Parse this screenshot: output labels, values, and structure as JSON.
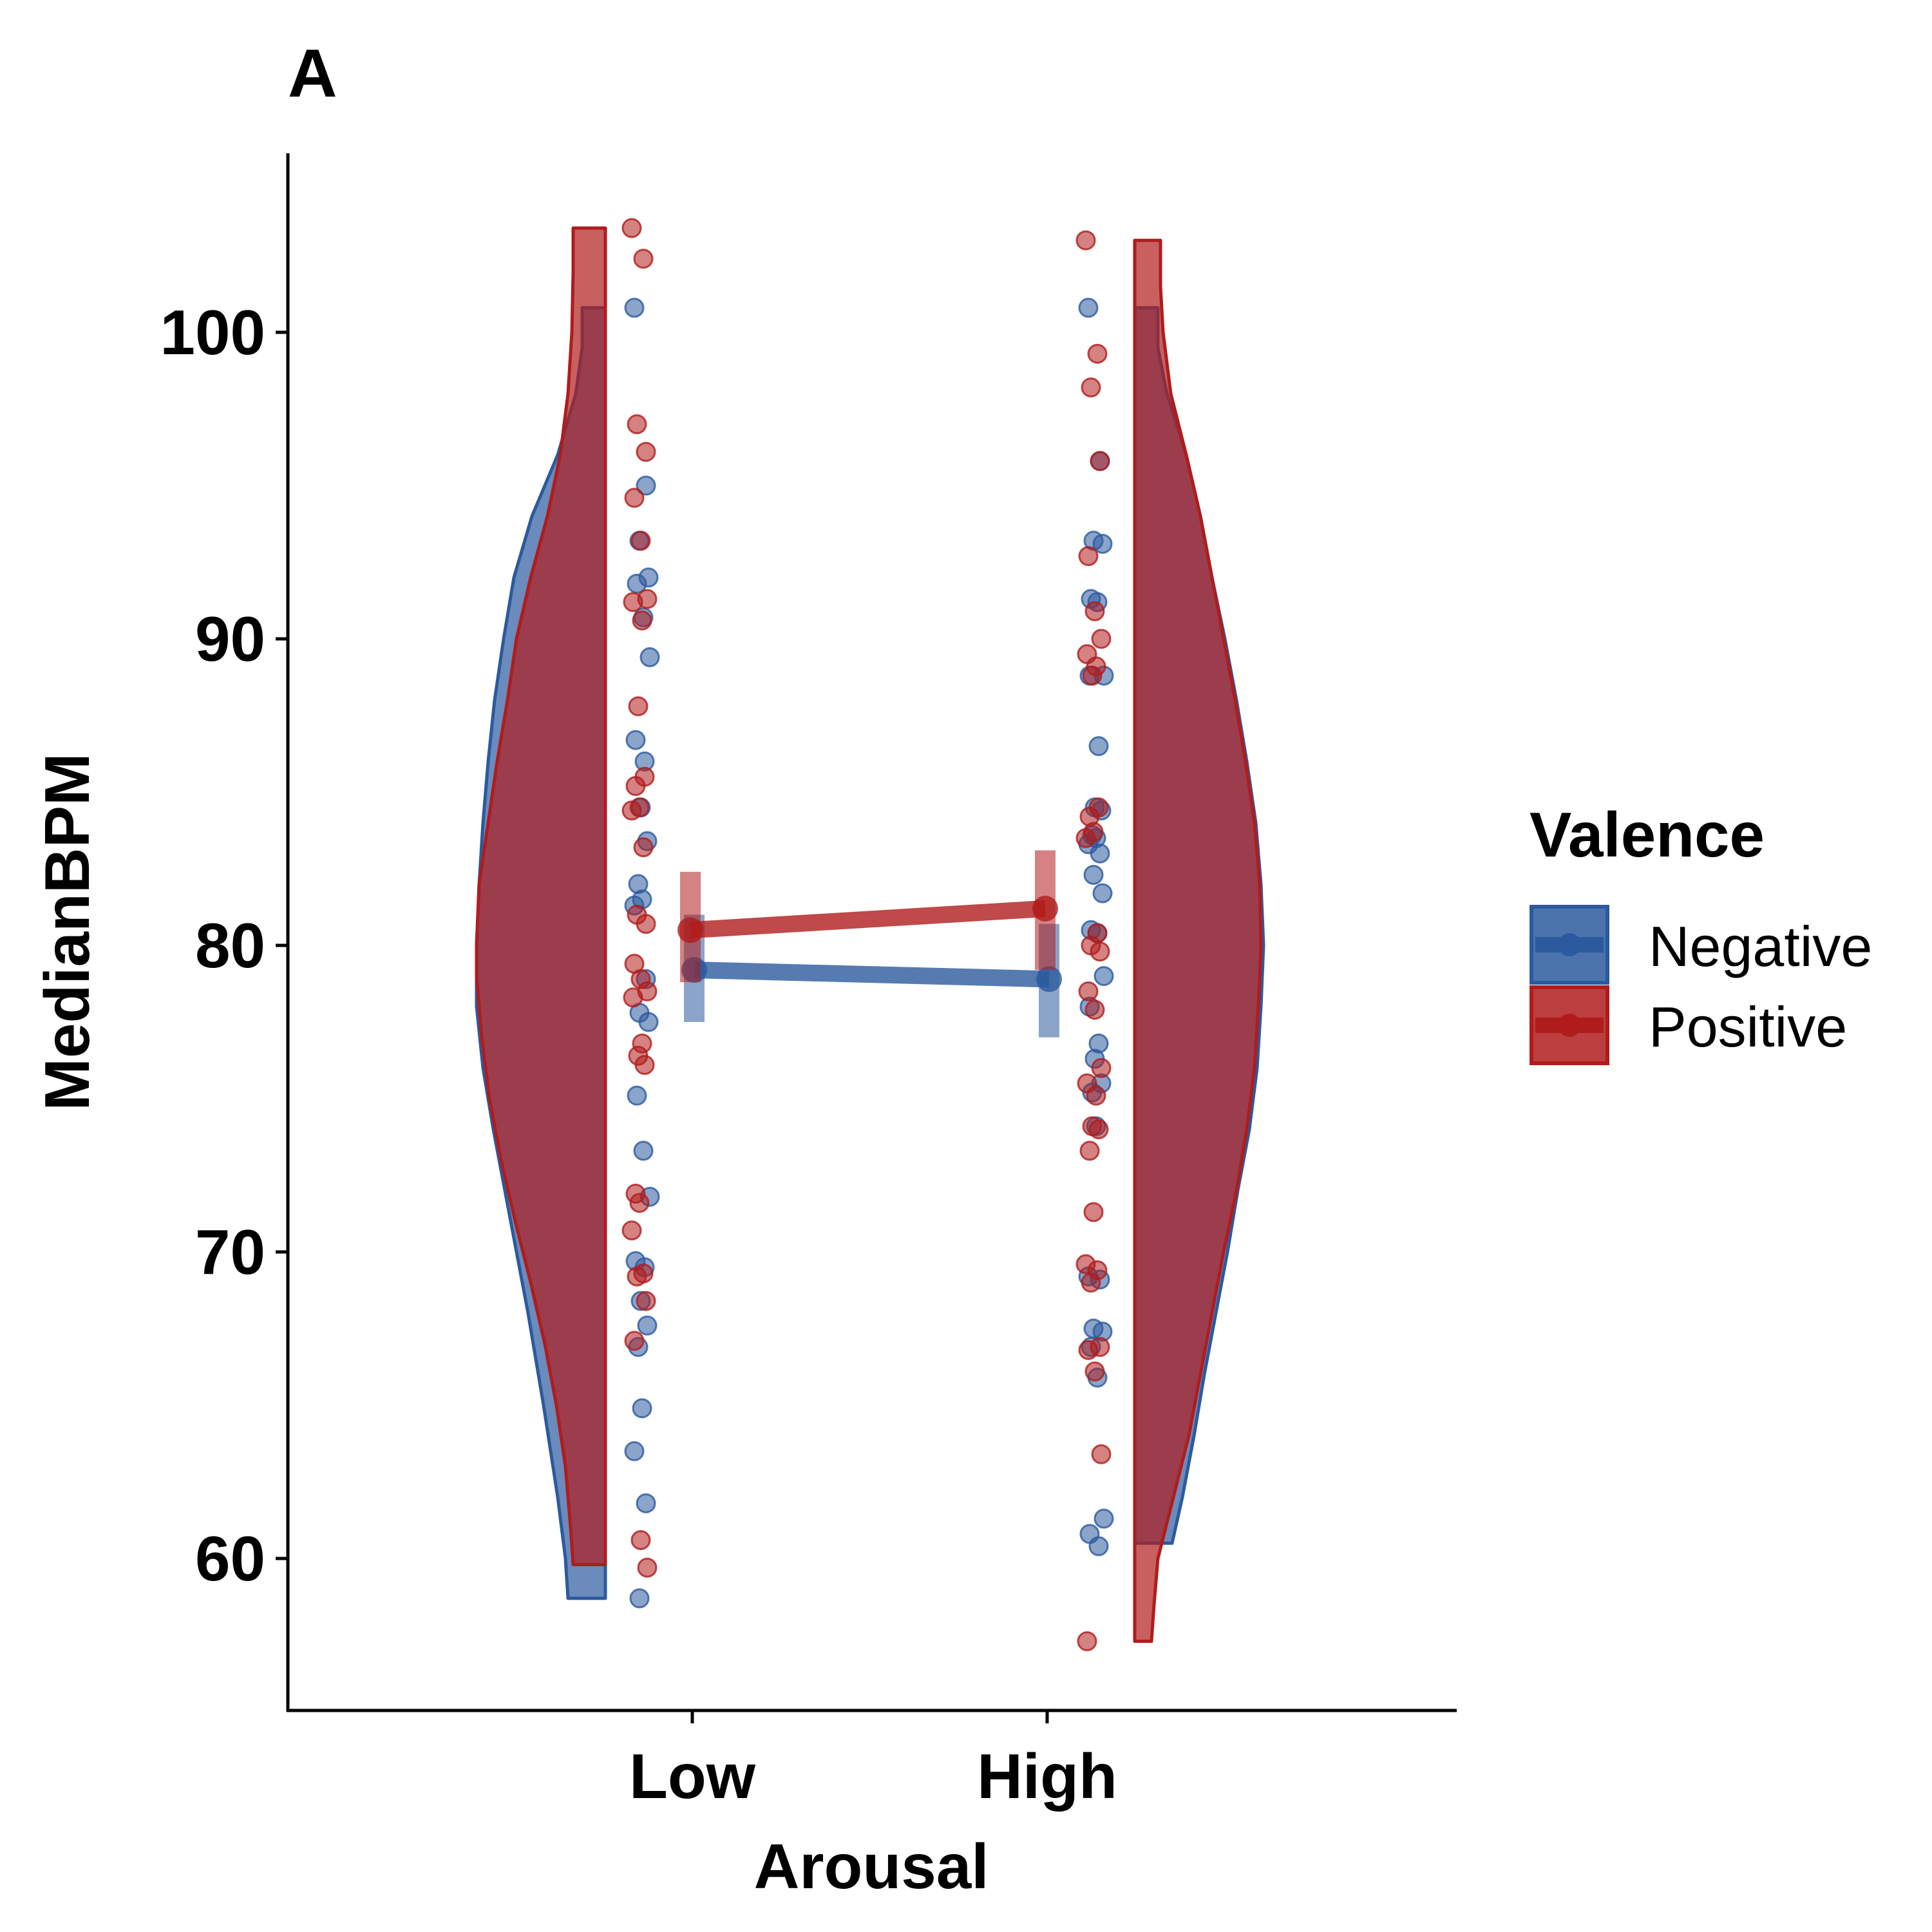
{
  "chart_data": {
    "type": "violin",
    "panel_label": "A",
    "xlabel": "Arousal",
    "ylabel": "MedianBPM",
    "categories": [
      "Low",
      "High"
    ],
    "ylim": [
      55,
      105.5
    ],
    "yticks": [
      60,
      70,
      80,
      90,
      100
    ],
    "grid": false,
    "legend": {
      "title": "Valence",
      "position": "right"
    },
    "series": [
      {
        "name": "Negative",
        "color": "#2b5a9e",
        "means": [
          79.2,
          78.9
        ],
        "ci": [
          [
            77.5,
            81.0
          ],
          [
            77.0,
            80.7
          ]
        ],
        "violins": [
          {
            "category": "Low",
            "side": "left",
            "min": 58.7,
            "max": 100.8,
            "profile": [
              [
                58.7,
                0.29
              ],
              [
                60,
                0.31
              ],
              [
                62,
                0.37
              ],
              [
                65,
                0.48
              ],
              [
                68,
                0.6
              ],
              [
                70,
                0.69
              ],
              [
                72,
                0.78
              ],
              [
                74,
                0.87
              ],
              [
                76,
                0.95
              ],
              [
                78,
                1.0
              ],
              [
                80,
                1.0
              ],
              [
                82,
                0.98
              ],
              [
                84,
                0.95
              ],
              [
                86,
                0.91
              ],
              [
                88,
                0.86
              ],
              [
                90,
                0.79
              ],
              [
                92,
                0.71
              ],
              [
                94,
                0.57
              ],
              [
                96,
                0.37
              ],
              [
                98,
                0.23
              ],
              [
                99.5,
                0.18
              ],
              [
                100.8,
                0.18
              ]
            ]
          },
          {
            "category": "High",
            "side": "right",
            "min": 60.5,
            "max": 100.8,
            "profile": [
              [
                60.5,
                0.29
              ],
              [
                62,
                0.37
              ],
              [
                64,
                0.46
              ],
              [
                66,
                0.54
              ],
              [
                68,
                0.63
              ],
              [
                70,
                0.72
              ],
              [
                72,
                0.8
              ],
              [
                74,
                0.89
              ],
              [
                76,
                0.95
              ],
              [
                78,
                0.98
              ],
              [
                80,
                1.0
              ],
              [
                82,
                0.98
              ],
              [
                84,
                0.94
              ],
              [
                86,
                0.87
              ],
              [
                88,
                0.79
              ],
              [
                90,
                0.7
              ],
              [
                92,
                0.6
              ],
              [
                94,
                0.51
              ],
              [
                96,
                0.4
              ],
              [
                98,
                0.25
              ],
              [
                99.5,
                0.18
              ],
              [
                100.8,
                0.18
              ]
            ]
          }
        ],
        "points": [
          {
            "category": "Low",
            "values": [
              100.8,
              95.0,
              93.2,
              92.0,
              91.8,
              90.7,
              89.4,
              86.7,
              86.0,
              84.5,
              83.4,
              82.0,
              81.5,
              81.3,
              78.9,
              77.8,
              77.5,
              75.1,
              73.3,
              71.8,
              69.7,
              69.5,
              68.4,
              67.6,
              66.9,
              64.9,
              63.5,
              61.8,
              58.7
            ]
          },
          {
            "category": "High",
            "values": [
              100.8,
              95.8,
              93.2,
              93.1,
              91.3,
              91.2,
              88.8,
              88.8,
              86.5,
              84.5,
              84.4,
              83.6,
              83.5,
              83.3,
              83.0,
              82.3,
              81.7,
              80.5,
              80.4,
              79.0,
              78.0,
              76.8,
              76.3,
              75.5,
              75.2,
              74.1,
              69.2,
              69.1,
              67.5,
              67.4,
              66.9,
              65.9,
              61.3,
              60.8,
              60.4
            ]
          }
        ]
      },
      {
        "name": "Positive",
        "color": "#b01c1c",
        "means": [
          80.5,
          81.2
        ],
        "ci": [
          [
            78.8,
            82.4
          ],
          [
            79.2,
            83.1
          ]
        ],
        "violins": [
          {
            "category": "Low",
            "side": "left",
            "min": 59.8,
            "max": 103.4,
            "profile": [
              [
                59.8,
                0.25
              ],
              [
                61,
                0.27
              ],
              [
                63,
                0.31
              ],
              [
                65,
                0.38
              ],
              [
                67,
                0.47
              ],
              [
                69,
                0.58
              ],
              [
                71,
                0.7
              ],
              [
                73,
                0.81
              ],
              [
                75,
                0.9
              ],
              [
                77,
                0.96
              ],
              [
                79,
                1.0
              ],
              [
                80,
                1.0
              ],
              [
                82,
                0.98
              ],
              [
                84,
                0.91
              ],
              [
                86,
                0.84
              ],
              [
                88,
                0.76
              ],
              [
                90,
                0.69
              ],
              [
                92,
                0.58
              ],
              [
                94,
                0.45
              ],
              [
                96,
                0.35
              ],
              [
                98,
                0.29
              ],
              [
                100,
                0.26
              ],
              [
                102,
                0.25
              ],
              [
                103.4,
                0.25
              ]
            ]
          },
          {
            "category": "High",
            "side": "right",
            "min": 57.3,
            "max": 103.0,
            "profile": [
              [
                57.3,
                0.13
              ],
              [
                58.5,
                0.15
              ],
              [
                60,
                0.18
              ],
              [
                62,
                0.3
              ],
              [
                64,
                0.42
              ],
              [
                66,
                0.51
              ],
              [
                68,
                0.6
              ],
              [
                70,
                0.69
              ],
              [
                72,
                0.79
              ],
              [
                74,
                0.87
              ],
              [
                76,
                0.93
              ],
              [
                78,
                0.96
              ],
              [
                80,
                0.98
              ],
              [
                82,
                0.97
              ],
              [
                84,
                0.93
              ],
              [
                86,
                0.86
              ],
              [
                88,
                0.78
              ],
              [
                90,
                0.69
              ],
              [
                92,
                0.6
              ],
              [
                94,
                0.51
              ],
              [
                96,
                0.4
              ],
              [
                98,
                0.28
              ],
              [
                100,
                0.22
              ],
              [
                101.5,
                0.2
              ],
              [
                103.0,
                0.2
              ]
            ]
          }
        ],
        "points": [
          {
            "category": "Low",
            "values": [
              103.4,
              102.4,
              97.0,
              96.1,
              94.6,
              93.2,
              91.3,
              91.2,
              90.6,
              87.8,
              85.5,
              85.2,
              84.5,
              84.4,
              83.2,
              81.0,
              80.7,
              79.4,
              78.9,
              78.5,
              78.3,
              76.8,
              76.4,
              76.1,
              71.9,
              71.6,
              70.7,
              69.3,
              69.2,
              68.4,
              67.1,
              60.6,
              59.7
            ]
          },
          {
            "category": "High",
            "values": [
              103.0,
              99.3,
              98.2,
              95.8,
              92.7,
              90.9,
              90.0,
              89.5,
              89.1,
              88.8,
              84.5,
              84.2,
              83.7,
              83.5,
              80.4,
              80.0,
              79.8,
              78.5,
              77.9,
              76.0,
              75.5,
              75.1,
              74.1,
              74.0,
              73.3,
              71.3,
              69.6,
              69.4,
              69.0,
              66.9,
              66.8,
              66.1,
              63.4,
              57.3
            ]
          }
        ]
      }
    ]
  }
}
